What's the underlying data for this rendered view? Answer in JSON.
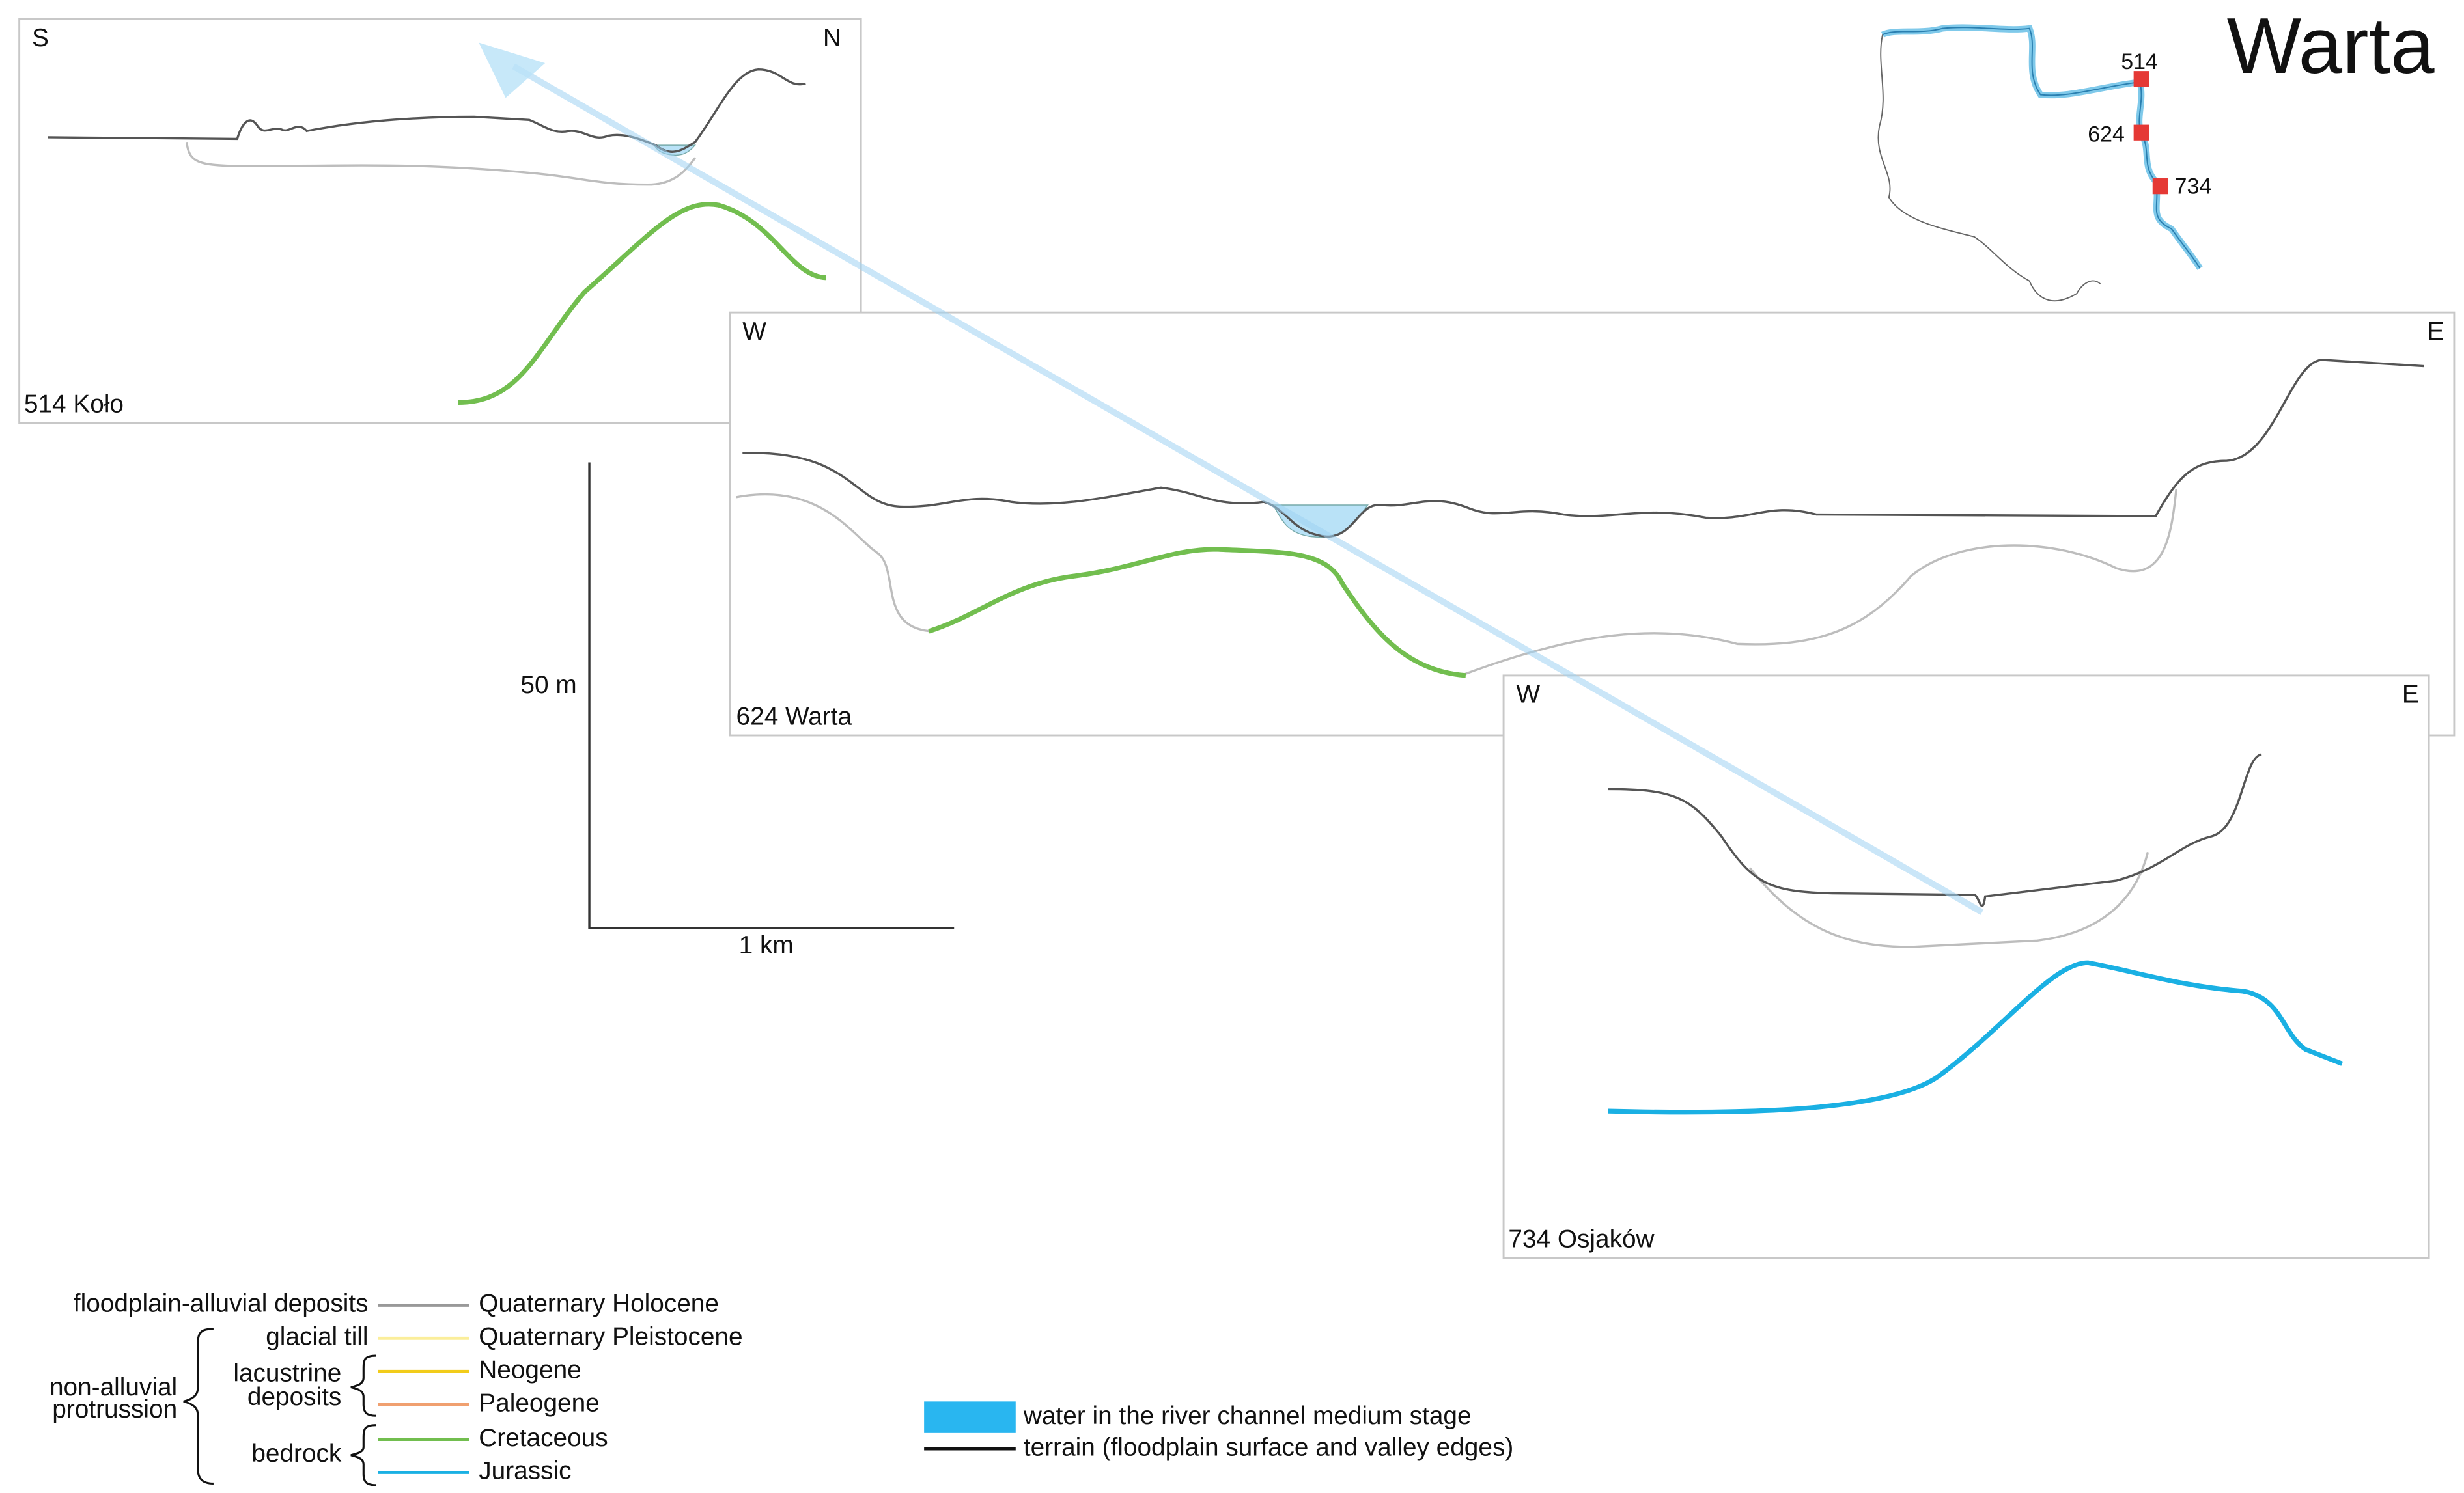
{
  "title": "Warta",
  "map": {
    "labels": [
      "514",
      "624",
      "734"
    ]
  },
  "panels": [
    {
      "left": "S",
      "right": "N",
      "label": "514 Koło"
    },
    {
      "left": "W",
      "right": "E",
      "label": "624 Warta"
    },
    {
      "left": "W",
      "right": "E",
      "label": "734 Osjaków"
    }
  ],
  "scale": {
    "vertical": "50 m",
    "horizontal": "1 km"
  },
  "legend": {
    "groups": {
      "floodplain": "floodplain-alluvial deposits",
      "glacial": "glacial till",
      "lacustrine": [
        "lacustrine",
        "deposits"
      ],
      "bedrock": "bedrock",
      "non_alluvial": [
        "non-alluvial",
        "protrussion"
      ]
    },
    "items": [
      "Quaternary Holocene",
      "Quaternary Pleistocene",
      "Neogene",
      "Paleogene",
      "Cretaceous",
      "Jurassic"
    ],
    "symbols": [
      "water in the river channel medium stage",
      "terrain (floodplain surface and valley edges)"
    ]
  }
}
